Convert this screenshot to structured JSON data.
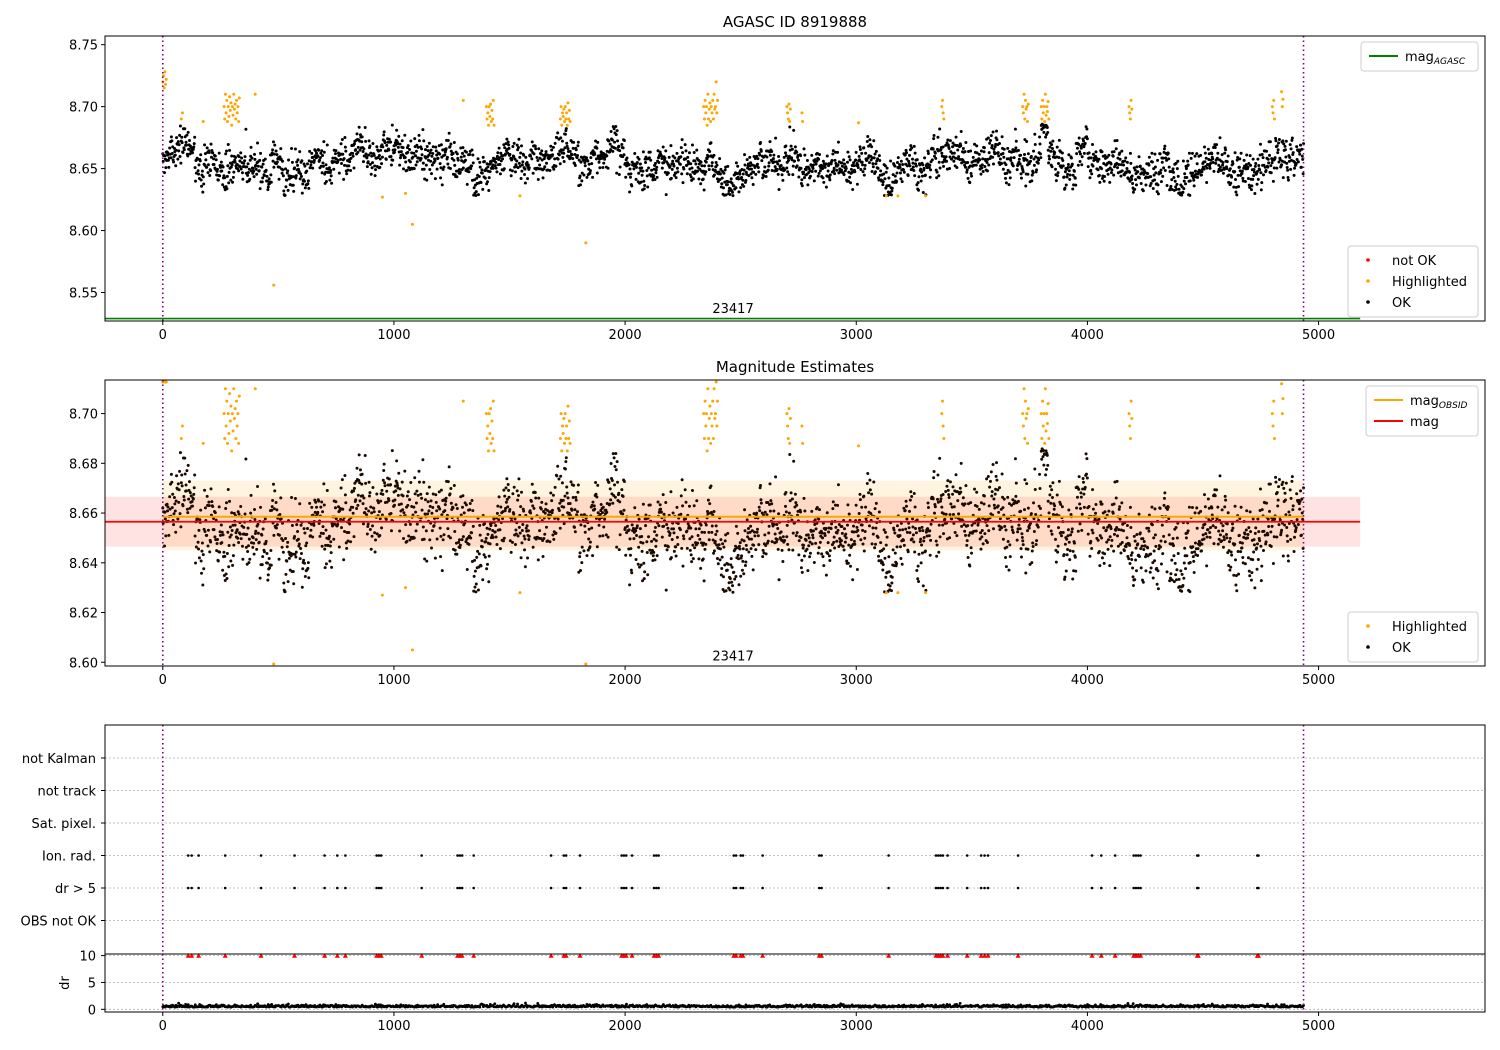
{
  "chart_data": [
    {
      "type": "scatter",
      "title": "AGASC ID 8919888",
      "xlim": [
        -250,
        5720
      ],
      "ylim": [
        8.527,
        8.757
      ],
      "xticks": [
        0,
        1000,
        2000,
        3000,
        4000,
        5000
      ],
      "yticks": [
        8.55,
        8.6,
        8.65,
        8.7,
        8.75
      ],
      "ytick_labels": [
        "8.55",
        "8.60",
        "8.65",
        "8.70",
        "8.75"
      ],
      "obsid_lines": [
        0,
        4935
      ],
      "obsid_label": "23417",
      "obsid_label_x": 2467,
      "obsid_label_y": 8.535,
      "mag_agasc": 8.529,
      "mag_agasc_x_range": [
        -250,
        5180
      ],
      "series": [
        {
          "name": "not OK",
          "color": "#ff0000",
          "points": []
        },
        {
          "name": "Highlighted",
          "color": "#ffa500",
          "points": [
            [
              0,
              8.72
            ],
            [
              3,
              8.725
            ],
            [
              6,
              8.715
            ],
            [
              9,
              8.728
            ],
            [
              12,
              8.718
            ],
            [
              15,
              8.722
            ],
            [
              80,
              8.69
            ],
            [
              85,
              8.695
            ],
            [
              175,
              8.688
            ],
            [
              265,
              8.7
            ],
            [
              268,
              8.69
            ],
            [
              271,
              8.71
            ],
            [
              274,
              8.695
            ],
            [
              277,
              8.705
            ],
            [
              280,
              8.688
            ],
            [
              283,
              8.7
            ],
            [
              286,
              8.692
            ],
            [
              289,
              8.708
            ],
            [
              292,
              8.697
            ],
            [
              295,
              8.703
            ],
            [
              298,
              8.685
            ],
            [
              301,
              8.7
            ],
            [
              304,
              8.693
            ],
            [
              307,
              8.71
            ],
            [
              310,
              8.698
            ],
            [
              313,
              8.702
            ],
            [
              316,
              8.69
            ],
            [
              319,
              8.705
            ],
            [
              322,
              8.695
            ],
            [
              325,
              8.7
            ],
            [
              328,
              8.688
            ],
            [
              331,
              8.707
            ],
            [
              400,
              8.71
            ],
            [
              480,
              8.556
            ],
            [
              950,
              8.627
            ],
            [
              1050,
              8.63
            ],
            [
              1080,
              8.605
            ],
            [
              1300,
              8.705
            ],
            [
              1400,
              8.7
            ],
            [
              1403,
              8.69
            ],
            [
              1406,
              8.695
            ],
            [
              1409,
              8.685
            ],
            [
              1412,
              8.7
            ],
            [
              1415,
              8.692
            ],
            [
              1418,
              8.702
            ],
            [
              1421,
              8.688
            ],
            [
              1424,
              8.697
            ],
            [
              1427,
              8.69
            ],
            [
              1430,
              8.705
            ],
            [
              1433,
              8.685
            ],
            [
              1545,
              8.628
            ],
            [
              1720,
              8.69
            ],
            [
              1723,
              8.7
            ],
            [
              1726,
              8.685
            ],
            [
              1729,
              8.695
            ],
            [
              1732,
              8.692
            ],
            [
              1735,
              8.698
            ],
            [
              1738,
              8.688
            ],
            [
              1741,
              8.7
            ],
            [
              1744,
              8.69
            ],
            [
              1747,
              8.695
            ],
            [
              1750,
              8.685
            ],
            [
              1753,
              8.703
            ],
            [
              1756,
              8.69
            ],
            [
              1759,
              8.697
            ],
            [
              1762,
              8.688
            ],
            [
              1830,
              8.59
            ],
            [
              2340,
              8.7
            ],
            [
              2343,
              8.69
            ],
            [
              2346,
              8.705
            ],
            [
              2349,
              8.695
            ],
            [
              2352,
              8.7
            ],
            [
              2355,
              8.685
            ],
            [
              2358,
              8.71
            ],
            [
              2361,
              8.69
            ],
            [
              2364,
              8.698
            ],
            [
              2367,
              8.703
            ],
            [
              2370,
              8.688
            ],
            [
              2373,
              8.7
            ],
            [
              2376,
              8.695
            ],
            [
              2379,
              8.705
            ],
            [
              2382,
              8.69
            ],
            [
              2385,
              8.71
            ],
            [
              2388,
              8.698
            ],
            [
              2391,
              8.7
            ],
            [
              2394,
              8.72
            ],
            [
              2397,
              8.695
            ],
            [
              2400,
              8.705
            ],
            [
              2700,
              8.7
            ],
            [
              2703,
              8.695
            ],
            [
              2706,
              8.69
            ],
            [
              2709,
              8.702
            ],
            [
              2712,
              8.688
            ],
            [
              2715,
              8.698
            ],
            [
              2765,
              8.695
            ],
            [
              2768,
              8.688
            ],
            [
              3010,
              8.687
            ],
            [
              3130,
              8.628
            ],
            [
              3180,
              8.628
            ],
            [
              3300,
              8.628
            ],
            [
              3370,
              8.7
            ],
            [
              3373,
              8.705
            ],
            [
              3376,
              8.695
            ],
            [
              3379,
              8.69
            ],
            [
              3720,
              8.7
            ],
            [
              3723,
              8.695
            ],
            [
              3726,
              8.71
            ],
            [
              3729,
              8.69
            ],
            [
              3732,
              8.705
            ],
            [
              3735,
              8.698
            ],
            [
              3738,
              8.7
            ],
            [
              3741,
              8.688
            ],
            [
              3744,
              8.702
            ],
            [
              3800,
              8.7
            ],
            [
              3803,
              8.69
            ],
            [
              3806,
              8.705
            ],
            [
              3809,
              8.695
            ],
            [
              3812,
              8.7
            ],
            [
              3815,
              8.688
            ],
            [
              3818,
              8.71
            ],
            [
              3821,
              8.693
            ],
            [
              3824,
              8.7
            ],
            [
              3827,
              8.696
            ],
            [
              3830,
              8.704
            ],
            [
              3833,
              8.69
            ],
            [
              4180,
              8.7
            ],
            [
              4183,
              8.695
            ],
            [
              4186,
              8.69
            ],
            [
              4189,
              8.705
            ],
            [
              4192,
              8.698
            ],
            [
              4800,
              8.7
            ],
            [
              4803,
              8.695
            ],
            [
              4806,
              8.705
            ],
            [
              4809,
              8.69
            ],
            [
              4840,
              8.712
            ],
            [
              4843,
              8.7
            ],
            [
              4846,
              8.706
            ]
          ]
        },
        {
          "name": "OK",
          "color": "#000000",
          "gen": {
            "n": 2650,
            "x0": 0,
            "x1": 4935,
            "seed": 8919888
          }
        }
      ],
      "legends": [
        {
          "entries": [
            {
              "label": "mag",
              "subscript": "AGASC",
              "kind": "line",
              "color": "#008000"
            }
          ]
        },
        {
          "entries": [
            {
              "label": "not OK",
              "kind": "marker",
              "color": "#ff0000"
            },
            {
              "label": "Highlighted",
              "kind": "marker",
              "color": "#ffa500"
            },
            {
              "label": "OK",
              "kind": "marker",
              "color": "#000000"
            }
          ]
        }
      ]
    },
    {
      "type": "scatter",
      "title": "Magnitude Estimates",
      "xlim": [
        -250,
        5720
      ],
      "ylim": [
        8.5985,
        8.7135
      ],
      "xticks": [
        0,
        1000,
        2000,
        3000,
        4000,
        5000
      ],
      "yticks": [
        8.6,
        8.62,
        8.64,
        8.66,
        8.68,
        8.7
      ],
      "ytick_labels": [
        "8.60",
        "8.62",
        "8.64",
        "8.66",
        "8.68",
        "8.70"
      ],
      "obsid_lines": [
        0,
        4935
      ],
      "obsid_label": "23417",
      "obsid_label_x": 2467,
      "obsid_label_y": 8.6015,
      "mag_obsid": 8.6585,
      "mag_obsid_band": [
        8.645,
        8.673
      ],
      "mag_obsid_x_range": [
        0,
        4935
      ],
      "mag": 8.6565,
      "mag_band": [
        8.6465,
        8.6665
      ],
      "mag_x_range": [
        -250,
        5180
      ],
      "series": [
        {
          "name": "Highlighted",
          "color": "#ffa500",
          "same_as": "Highlighted"
        },
        {
          "name": "OK",
          "color": "#000000",
          "same_as": "OK"
        }
      ],
      "legends": [
        {
          "entries": [
            {
              "label": "mag",
              "subscript": "OBSID",
              "kind": "line",
              "color": "#ffa500"
            },
            {
              "label": "mag",
              "kind": "line",
              "color": "#ff0000"
            }
          ]
        },
        {
          "entries": [
            {
              "label": "Highlighted",
              "kind": "marker",
              "color": "#ffa500"
            },
            {
              "label": "OK",
              "kind": "marker",
              "color": "#000000"
            }
          ]
        }
      ]
    },
    {
      "type": "scatter",
      "title": "",
      "xlim": [
        -250,
        5720
      ],
      "categories": [
        "not Kalman",
        "not track",
        "Sat. pixel.",
        "Ion. rad.",
        "dr > 5",
        "OBS not OK"
      ],
      "flag_times": [
        110,
        125,
        155,
        270,
        425,
        570,
        700,
        755,
        790,
        925,
        935,
        945,
        1120,
        1275,
        1285,
        1295,
        1345,
        1680,
        1735,
        1745,
        1805,
        1985,
        1995,
        2005,
        2030,
        2125,
        2135,
        2145,
        2470,
        2480,
        2500,
        2510,
        2595,
        2840,
        2850,
        3140,
        3345,
        3355,
        3365,
        3375,
        3395,
        3480,
        3540,
        3555,
        3570,
        3700,
        4020,
        4060,
        4120,
        4200,
        4210,
        4220,
        4230,
        4475,
        4480,
        4735,
        4740
      ],
      "flag_rows": [
        "Ion. rad.",
        "dr > 5"
      ],
      "obsid_lines": [
        0,
        4935
      ]
    },
    {
      "type": "scatter",
      "title": "",
      "xlim": [
        -250,
        5720
      ],
      "ylim": [
        -0.5,
        10.3
      ],
      "xticks": [
        0,
        1000,
        2000,
        3000,
        4000,
        5000
      ],
      "yticks": [
        0,
        5,
        10
      ],
      "ylabel": "dr",
      "dr_clip": 10,
      "dr_gen": {
        "x0": 0,
        "x1": 4935,
        "n": 1300,
        "mean": 0.4,
        "seed": 23417
      },
      "obsid_lines": [
        0,
        4935
      ]
    }
  ]
}
